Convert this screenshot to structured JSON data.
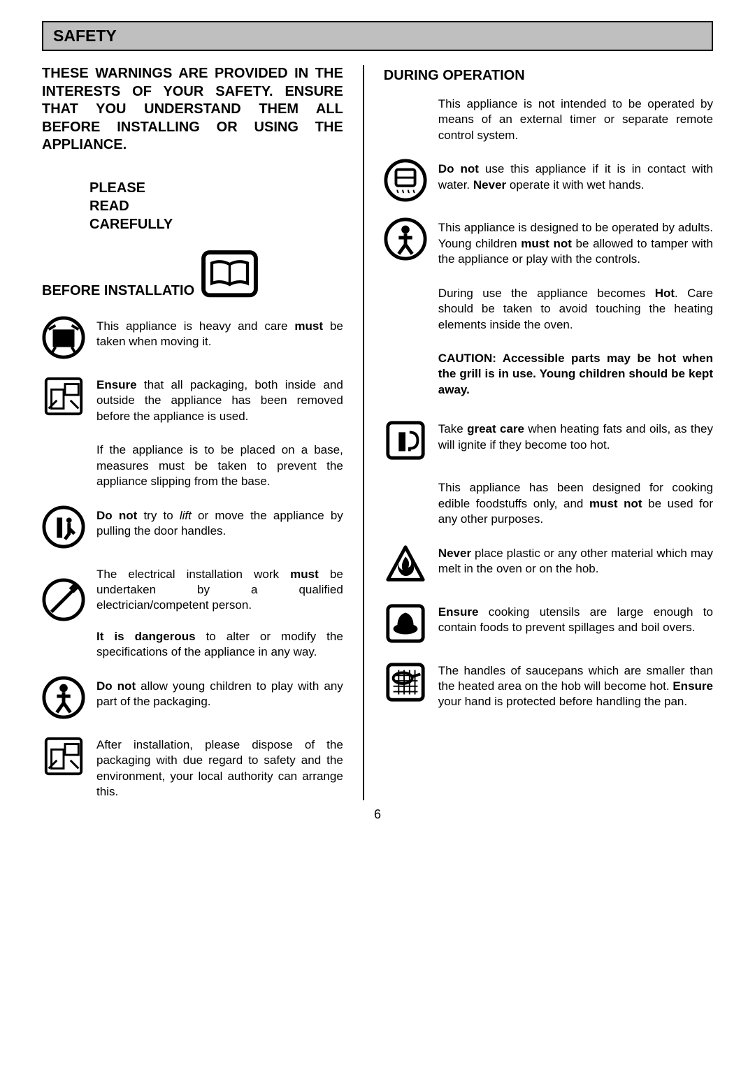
{
  "header": {
    "title": "SAFETY"
  },
  "left": {
    "intro": "THESE WARNINGS ARE PROVIDED IN THE INTERESTS OF YOUR SAFETY. ENSURE THAT YOU UNDERSTAND THEM ALL BEFORE INSTALLING OR USING THE APPLIANCE.",
    "please_line1": "PLEASE",
    "please_line2": "READ",
    "please_line3": "CAREFULLY",
    "before_install": "BEFORE INSTALLATIO",
    "items": [
      {
        "text": "This appliance is heavy and care <b>must</b> be taken when moving it."
      },
      {
        "text": "<b>Ensure</b> that all packaging, both inside and outside the appliance has been removed before the appliance is used."
      },
      {
        "text": "If the appliance is to be placed on a base, measures must be taken to prevent the appliance slipping from the base."
      },
      {
        "text": "<b>Do not</b> try to <i>lift</i> or move the appliance by pulling the door handles."
      },
      {
        "text": "The electrical installation work <b>must</b> be undertaken by a qualified electrician/competent person."
      },
      {
        "text": "<b>It is dangerous</b> to alter or modify the specifications of the appliance in any way."
      },
      {
        "text": "<b>Do not</b> allow young children to play with any part of the packaging."
      },
      {
        "text": "After installation, please dispose of the packaging with due regard to safety and the environment, your local authority can arrange this."
      }
    ]
  },
  "right": {
    "section_title": "DURING OPERATION",
    "items": [
      {
        "text": "This appliance is not intended to be operated by means of an external timer or separate remote control system."
      },
      {
        "text": "<b>Do not</b> use this appliance if it is in contact with water.   <b>Never</b> operate it with wet hands."
      },
      {
        "text": "This appliance is designed to be operated by adults. Young children <b>must not</b> be allowed to tamper with the appliance or play with the controls."
      },
      {
        "text": "During use the appliance becomes <b>Hot</b>.  Care should be taken to avoid touching the heating elements inside the oven."
      },
      {
        "text": "CAUTION: Accessible parts may be hot when the grill is in use. Young children should be kept away."
      },
      {
        "text": "Take <b>great care</b> when heating fats and oils, as they will ignite if they become too hot."
      },
      {
        "text": "This appliance has been designed for cooking edible foodstuffs only, and <b>must not</b> be used for any other purposes."
      },
      {
        "text": "<b>Never</b> place plastic or any other material which may melt in the oven or on the hob."
      },
      {
        "text": "<b>Ensure</b> cooking utensils are large enough to contain foods to prevent spillages and boil overs."
      },
      {
        "text": "The handles of saucepans which are smaller than the heated area on the hob will become hot.  <b>Ensure</b> your hand is protected before handling the pan."
      }
    ]
  },
  "page_number": "6",
  "colors": {
    "header_bg": "#bfbfbf",
    "border": "#000000",
    "text": "#000000",
    "bg": "#ffffff"
  }
}
